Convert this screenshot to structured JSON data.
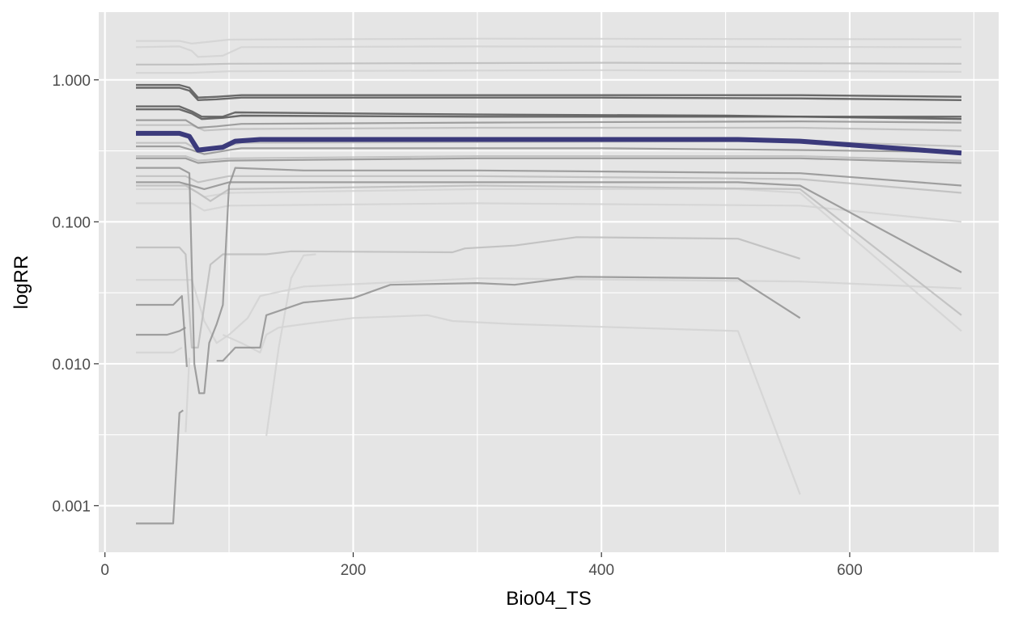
{
  "chart_data": {
    "type": "line",
    "title": "",
    "xlabel": "Bio04_TS",
    "ylabel": "logRR",
    "x_scale": "linear",
    "y_scale": "log10",
    "xlim": [
      -5,
      720
    ],
    "ylim": [
      0.00047,
      3.0
    ],
    "x_ticks": [
      0,
      200,
      400,
      600
    ],
    "x_tick_labels": [
      "0",
      "200",
      "400",
      "600"
    ],
    "y_ticks": [
      0.001,
      0.01,
      0.1,
      1.0
    ],
    "y_tick_labels": [
      "0.001",
      "0.010",
      "0.100",
      "1.000"
    ],
    "grid": true,
    "legend": "none",
    "colors": {
      "panel": "#e5e5e5",
      "grid": "#ffffff",
      "highlight": "#3b3a7b",
      "dark": "#5c5c5c",
      "mid": "#8c8c8c",
      "light": "#bdbdbd",
      "faint": "#d3d3d3"
    },
    "series": [
      {
        "style": "faint",
        "points": [
          [
            25,
            1.88
          ],
          [
            60,
            1.88
          ],
          [
            70,
            1.8
          ],
          [
            100,
            1.92
          ],
          [
            300,
            1.95
          ],
          [
            690,
            1.93
          ]
        ]
      },
      {
        "style": "faint",
        "points": [
          [
            25,
            1.7
          ],
          [
            60,
            1.72
          ],
          [
            70,
            1.6
          ],
          [
            75,
            1.45
          ],
          [
            95,
            1.48
          ],
          [
            110,
            1.7
          ],
          [
            300,
            1.72
          ],
          [
            690,
            1.7
          ]
        ]
      },
      {
        "style": "light",
        "points": [
          [
            25,
            1.28
          ],
          [
            70,
            1.28
          ],
          [
            100,
            1.3
          ],
          [
            400,
            1.32
          ],
          [
            690,
            1.3
          ]
        ]
      },
      {
        "style": "faint",
        "points": [
          [
            25,
            1.12
          ],
          [
            70,
            1.12
          ],
          [
            100,
            1.15
          ],
          [
            400,
            1.17
          ],
          [
            690,
            1.14
          ]
        ]
      },
      {
        "style": "dark",
        "points": [
          [
            25,
            0.92
          ],
          [
            60,
            0.92
          ],
          [
            68,
            0.88
          ],
          [
            75,
            0.75
          ],
          [
            90,
            0.76
          ],
          [
            110,
            0.78
          ],
          [
            400,
            0.78
          ],
          [
            560,
            0.78
          ],
          [
            690,
            0.76
          ]
        ]
      },
      {
        "style": "dark",
        "points": [
          [
            25,
            0.88
          ],
          [
            60,
            0.88
          ],
          [
            68,
            0.84
          ],
          [
            75,
            0.72
          ],
          [
            90,
            0.73
          ],
          [
            110,
            0.75
          ],
          [
            400,
            0.75
          ],
          [
            560,
            0.74
          ],
          [
            690,
            0.72
          ]
        ]
      },
      {
        "style": "dark",
        "points": [
          [
            25,
            0.65
          ],
          [
            60,
            0.65
          ],
          [
            70,
            0.6
          ],
          [
            78,
            0.55
          ],
          [
            95,
            0.55
          ],
          [
            105,
            0.59
          ],
          [
            300,
            0.57
          ],
          [
            500,
            0.56
          ],
          [
            690,
            0.53
          ]
        ]
      },
      {
        "style": "dark",
        "points": [
          [
            25,
            0.62
          ],
          [
            60,
            0.62
          ],
          [
            70,
            0.58
          ],
          [
            78,
            0.53
          ],
          [
            95,
            0.54
          ],
          [
            110,
            0.56
          ],
          [
            300,
            0.55
          ],
          [
            560,
            0.55
          ],
          [
            690,
            0.55
          ]
        ]
      },
      {
        "style": "mid",
        "points": [
          [
            25,
            0.52
          ],
          [
            65,
            0.52
          ],
          [
            75,
            0.46
          ],
          [
            90,
            0.47
          ],
          [
            110,
            0.49
          ],
          [
            300,
            0.5
          ],
          [
            560,
            0.51
          ],
          [
            690,
            0.5
          ]
        ]
      },
      {
        "style": "light",
        "points": [
          [
            25,
            0.48
          ],
          [
            70,
            0.48
          ],
          [
            80,
            0.44
          ],
          [
            100,
            0.45
          ],
          [
            300,
            0.46
          ],
          [
            560,
            0.46
          ],
          [
            690,
            0.44
          ]
        ]
      },
      {
        "style": "light",
        "points": [
          [
            25,
            0.36
          ],
          [
            65,
            0.36
          ],
          [
            75,
            0.32
          ],
          [
            90,
            0.33
          ],
          [
            110,
            0.36
          ],
          [
            560,
            0.37
          ],
          [
            690,
            0.34
          ]
        ]
      },
      {
        "style": "mid",
        "points": [
          [
            25,
            0.34
          ],
          [
            60,
            0.34
          ],
          [
            70,
            0.32
          ],
          [
            80,
            0.3
          ],
          [
            100,
            0.32
          ],
          [
            110,
            0.33
          ],
          [
            400,
            0.33
          ],
          [
            560,
            0.32
          ],
          [
            690,
            0.31
          ]
        ]
      },
      {
        "style": "light",
        "points": [
          [
            25,
            0.29
          ],
          [
            65,
            0.29
          ],
          [
            75,
            0.27
          ],
          [
            100,
            0.28
          ],
          [
            300,
            0.29
          ],
          [
            560,
            0.29
          ],
          [
            690,
            0.27
          ]
        ]
      },
      {
        "style": "mid",
        "points": [
          [
            25,
            0.28
          ],
          [
            65,
            0.28
          ],
          [
            75,
            0.26
          ],
          [
            100,
            0.27
          ],
          [
            300,
            0.28
          ],
          [
            560,
            0.28
          ],
          [
            690,
            0.26
          ]
        ]
      },
      {
        "style": "mid",
        "points": [
          [
            25,
            0.24
          ],
          [
            60,
            0.24
          ],
          [
            68,
            0.22
          ],
          [
            72,
            0.01
          ],
          [
            76,
            0.0062
          ],
          [
            80,
            0.0062
          ],
          [
            84,
            0.014
          ],
          [
            90,
            0.019
          ],
          [
            95,
            0.026
          ],
          [
            100,
            0.18
          ],
          [
            105,
            0.24
          ],
          [
            160,
            0.23
          ],
          [
            300,
            0.23
          ],
          [
            560,
            0.22
          ],
          [
            690,
            0.18
          ]
        ]
      },
      {
        "style": "light",
        "points": [
          [
            25,
            0.21
          ],
          [
            65,
            0.21
          ],
          [
            75,
            0.19
          ],
          [
            100,
            0.21
          ],
          [
            300,
            0.21
          ],
          [
            560,
            0.2
          ],
          [
            690,
            0.16
          ]
        ]
      },
      {
        "style": "mid",
        "points": [
          [
            25,
            0.19
          ],
          [
            60,
            0.19
          ],
          [
            70,
            0.18
          ],
          [
            80,
            0.17
          ],
          [
            100,
            0.19
          ],
          [
            300,
            0.19
          ],
          [
            510,
            0.19
          ],
          [
            560,
            0.18
          ],
          [
            690,
            0.044
          ]
        ]
      },
      {
        "style": "light",
        "points": [
          [
            25,
            0.18
          ],
          [
            65,
            0.18
          ],
          [
            75,
            0.16
          ],
          [
            85,
            0.14
          ],
          [
            100,
            0.17
          ],
          [
            300,
            0.18
          ],
          [
            560,
            0.17
          ],
          [
            690,
            0.022
          ]
        ]
      },
      {
        "style": "faint",
        "points": [
          [
            25,
            0.17
          ],
          [
            70,
            0.17
          ],
          [
            80,
            0.15
          ],
          [
            100,
            0.16
          ],
          [
            300,
            0.17
          ],
          [
            510,
            0.17
          ],
          [
            560,
            0.16
          ],
          [
            690,
            0.017
          ]
        ]
      },
      {
        "style": "faint",
        "points": [
          [
            25,
            0.135
          ],
          [
            70,
            0.135
          ],
          [
            80,
            0.12
          ],
          [
            100,
            0.13
          ],
          [
            300,
            0.135
          ],
          [
            560,
            0.13
          ],
          [
            690,
            0.1
          ]
        ]
      },
      {
        "style": "light",
        "points": [
          [
            25,
            0.066
          ],
          [
            60,
            0.066
          ],
          [
            65,
            0.059
          ],
          [
            70,
            0.013
          ],
          [
            75,
            0.013
          ],
          [
            85,
            0.05
          ],
          [
            95,
            0.059
          ],
          [
            130,
            0.059
          ],
          [
            150,
            0.062
          ],
          [
            280,
            0.061
          ],
          [
            290,
            0.065
          ],
          [
            330,
            0.068
          ],
          [
            380,
            0.078
          ],
          [
            510,
            0.076
          ],
          [
            560,
            0.055
          ]
        ]
      },
      {
        "style": "faint",
        "points": [
          [
            25,
            0.039
          ],
          [
            70,
            0.039
          ],
          [
            80,
            0.02
          ],
          [
            90,
            0.014
          ],
          [
            100,
            0.016
          ],
          [
            115,
            0.021
          ],
          [
            125,
            0.03
          ],
          [
            160,
            0.035
          ],
          [
            300,
            0.04
          ],
          [
            560,
            0.038
          ],
          [
            690,
            0.034
          ]
        ]
      },
      {
        "style": "mid",
        "points": [
          [
            25,
            0.026
          ],
          [
            55,
            0.026
          ],
          [
            62,
            0.03
          ],
          [
            66,
            0.0095
          ]
        ]
      },
      {
        "style": "mid",
        "points": [
          [
            90,
            0.0105
          ],
          [
            95,
            0.0105
          ],
          [
            105,
            0.013
          ],
          [
            125,
            0.013
          ],
          [
            130,
            0.022
          ],
          [
            160,
            0.027
          ],
          [
            200,
            0.029
          ],
          [
            230,
            0.036
          ],
          [
            300,
            0.037
          ],
          [
            330,
            0.036
          ],
          [
            380,
            0.041
          ],
          [
            510,
            0.04
          ],
          [
            560,
            0.021
          ]
        ]
      },
      {
        "style": "mid",
        "points": [
          [
            25,
            0.016
          ],
          [
            50,
            0.016
          ],
          [
            60,
            0.017
          ],
          [
            65,
            0.018
          ]
        ]
      },
      {
        "style": "faint",
        "points": [
          [
            25,
            0.012
          ],
          [
            55,
            0.012
          ],
          [
            62,
            0.013
          ]
        ]
      },
      {
        "style": "faint",
        "points": [
          [
            95,
            0.016
          ],
          [
            110,
            0.014
          ],
          [
            125,
            0.012
          ],
          [
            130,
            0.016
          ],
          [
            140,
            0.018
          ],
          [
            160,
            0.019
          ],
          [
            200,
            0.021
          ],
          [
            260,
            0.022
          ],
          [
            280,
            0.02
          ],
          [
            330,
            0.019
          ],
          [
            510,
            0.017
          ],
          [
            560,
            0.0012
          ]
        ]
      },
      {
        "style": "mid",
        "points": [
          [
            25,
            0.00075
          ],
          [
            55,
            0.00075
          ],
          [
            60,
            0.0045
          ],
          [
            63,
            0.0047
          ]
        ]
      },
      {
        "style": "faint",
        "points": [
          [
            130,
            0.0031
          ],
          [
            140,
            0.013
          ],
          [
            150,
            0.04
          ],
          [
            160,
            0.058
          ],
          [
            170,
            0.059
          ]
        ]
      },
      {
        "style": "faint",
        "points": [
          [
            65,
            0.0033
          ],
          [
            68,
            0.011
          ]
        ]
      },
      {
        "style": "highlight",
        "points": [
          [
            25,
            0.42
          ],
          [
            60,
            0.42
          ],
          [
            68,
            0.4
          ],
          [
            75,
            0.32
          ],
          [
            95,
            0.335
          ],
          [
            105,
            0.37
          ],
          [
            125,
            0.38
          ],
          [
            300,
            0.38
          ],
          [
            510,
            0.38
          ],
          [
            560,
            0.37
          ],
          [
            690,
            0.305
          ]
        ]
      }
    ]
  }
}
